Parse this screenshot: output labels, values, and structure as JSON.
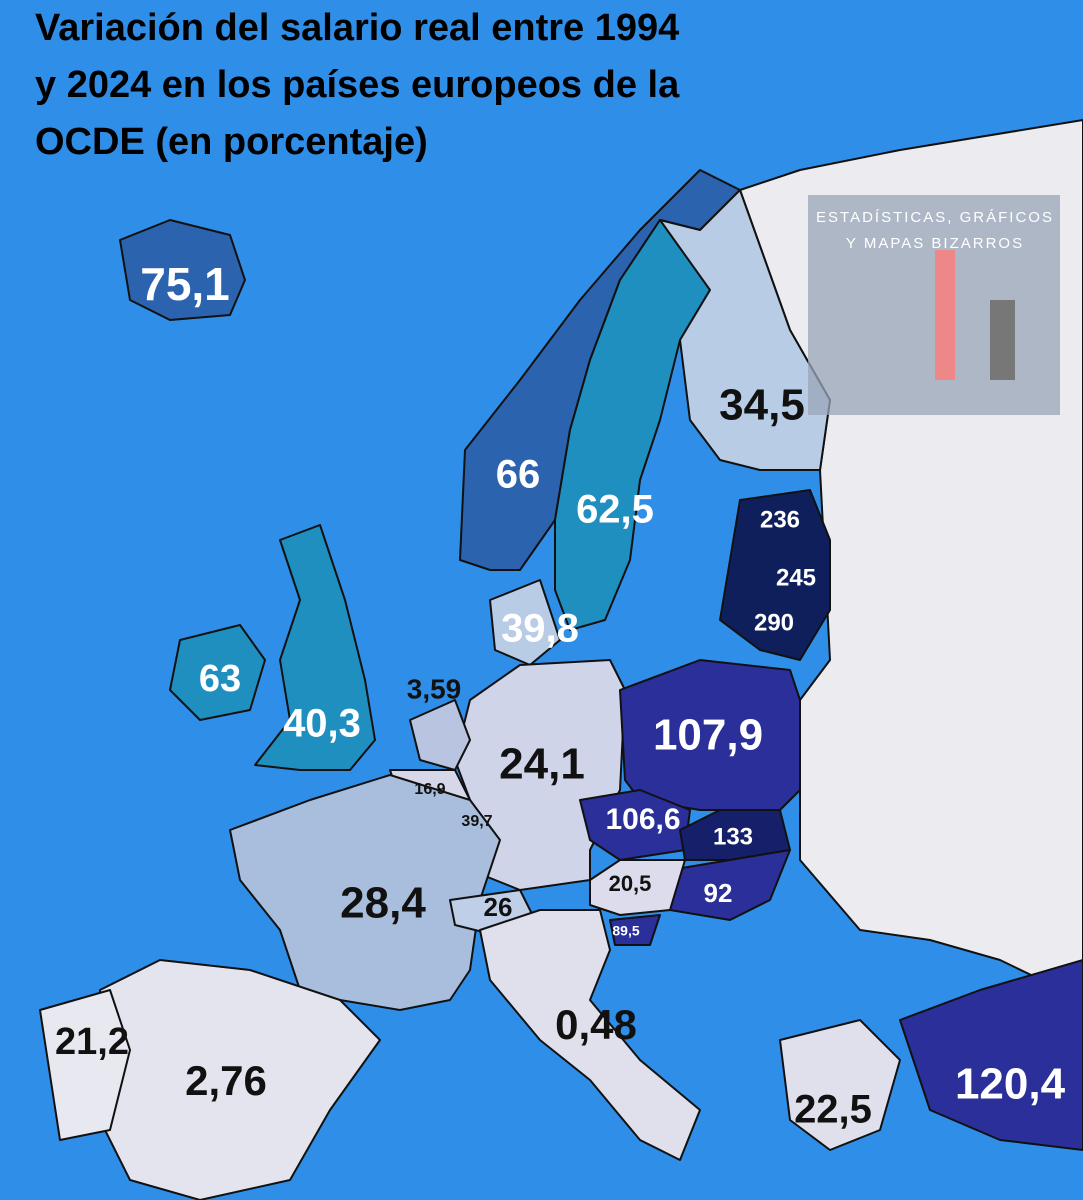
{
  "title": {
    "lines": [
      "Variación del salario real entre 1994",
      "y 2024 en los países europeos de la",
      "OCDE (en porcentaje)"
    ]
  },
  "watermark": {
    "lines": [
      "ESTADÍSTICAS, GRÁFICOS",
      "Y MAPAS BIZARROS"
    ]
  },
  "regions": [
    {
      "label": "75,1"
    },
    {
      "label": "66"
    },
    {
      "label": "62,5"
    },
    {
      "label": "34,5"
    },
    {
      "label": "236"
    },
    {
      "label": "245"
    },
    {
      "label": "290"
    },
    {
      "label": "39,8"
    },
    {
      "label": "63"
    },
    {
      "label": "40,3"
    },
    {
      "label": "3,59"
    },
    {
      "label": "24,1"
    },
    {
      "label": "107,9"
    },
    {
      "label": "16,9"
    },
    {
      "label": "39,7"
    },
    {
      "label": "106,6"
    },
    {
      "label": "133"
    },
    {
      "label": "20,5"
    },
    {
      "label": "92"
    },
    {
      "label": "28,4"
    },
    {
      "label": "26"
    },
    {
      "label": "89,5"
    },
    {
      "label": "21,2"
    },
    {
      "label": "2,76"
    },
    {
      "label": "0,48"
    },
    {
      "label": "22,5"
    },
    {
      "label": "120,4"
    }
  ]
}
